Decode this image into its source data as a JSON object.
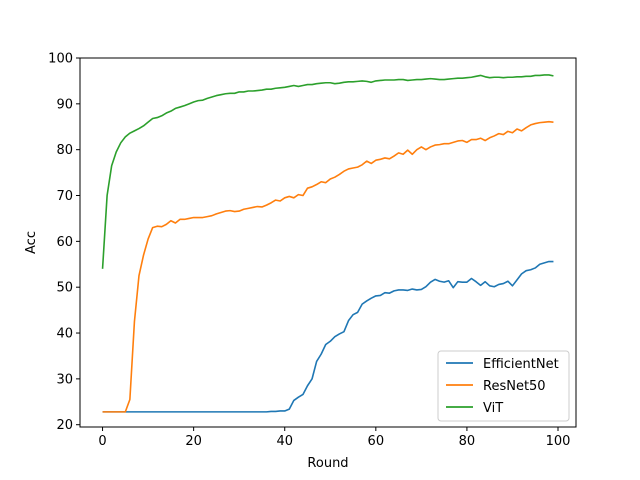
{
  "chart_data": {
    "type": "line",
    "title": "",
    "xlabel": "Round",
    "ylabel": "Acc",
    "xlim": [
      -4.95,
      103.95
    ],
    "ylim": [
      19.5,
      100
    ],
    "xticks": [
      0,
      20,
      40,
      60,
      80,
      100
    ],
    "yticks": [
      20,
      30,
      40,
      50,
      60,
      70,
      80,
      90,
      100
    ],
    "grid": false,
    "legend": "lower-right",
    "series": [
      {
        "name": "EfficientNet",
        "color": "#1f77b4",
        "values": [
          22.8,
          22.8,
          22.8,
          22.8,
          22.8,
          22.8,
          22.8,
          22.8,
          22.8,
          22.8,
          22.8,
          22.8,
          22.8,
          22.8,
          22.8,
          22.8,
          22.8,
          22.8,
          22.8,
          22.8,
          22.8,
          22.8,
          22.8,
          22.8,
          22.8,
          22.8,
          22.8,
          22.8,
          22.8,
          22.8,
          22.8,
          22.8,
          22.8,
          22.8,
          22.8,
          22.8,
          22.8,
          22.9,
          22.9,
          23.0,
          23.0,
          23.4,
          25.3,
          26.0,
          26.6,
          28.5,
          30.0,
          33.8,
          35.4,
          37.5,
          38.2,
          39.2,
          39.8,
          40.3,
          42.7,
          44.0,
          44.5,
          46.3,
          47.0,
          47.6,
          48.1,
          48.2,
          48.8,
          48.7,
          49.2,
          49.4,
          49.4,
          49.3,
          49.6,
          49.4,
          49.5,
          50.1,
          51.1,
          51.7,
          51.3,
          51.1,
          51.4,
          49.9,
          51.2,
          51.1,
          51.1,
          51.9,
          51.2,
          50.4,
          51.2,
          50.3,
          50.1,
          50.6,
          50.8,
          51.3,
          50.3,
          51.6,
          52.9,
          53.6,
          53.8,
          54.2,
          55.0,
          55.3,
          55.6,
          55.6
        ]
      },
      {
        "name": "ResNet50",
        "color": "#ff7f0e",
        "values": [
          22.8,
          22.8,
          22.8,
          22.8,
          22.8,
          22.8,
          25.5,
          42.5,
          52.5,
          57.0,
          60.5,
          63.0,
          63.3,
          63.2,
          63.7,
          64.5,
          64.0,
          64.8,
          64.8,
          65.0,
          65.2,
          65.2,
          65.2,
          65.4,
          65.6,
          66.0,
          66.3,
          66.6,
          66.7,
          66.5,
          66.6,
          67.0,
          67.2,
          67.4,
          67.6,
          67.5,
          67.9,
          68.4,
          69.0,
          68.8,
          69.5,
          69.8,
          69.5,
          70.2,
          70.0,
          71.6,
          71.9,
          72.4,
          73.0,
          72.8,
          73.6,
          74.0,
          74.6,
          75.3,
          75.8,
          76.0,
          76.2,
          76.7,
          77.5,
          77.0,
          77.7,
          77.9,
          78.2,
          78.0,
          78.6,
          79.3,
          79.0,
          79.9,
          79.0,
          80.0,
          80.6,
          80.0,
          80.6,
          81.0,
          81.1,
          81.3,
          81.3,
          81.6,
          81.9,
          82.0,
          81.6,
          82.2,
          82.2,
          82.5,
          82.0,
          82.6,
          83.0,
          83.5,
          83.3,
          84.0,
          83.7,
          84.5,
          84.1,
          84.8,
          85.4,
          85.7,
          85.9,
          86.0,
          86.1,
          86.0
        ]
      },
      {
        "name": "ViT",
        "color": "#2ca02c",
        "values": [
          54.0,
          70.0,
          76.5,
          79.5,
          81.5,
          82.8,
          83.6,
          84.1,
          84.6,
          85.2,
          86.0,
          86.8,
          87.0,
          87.4,
          88.0,
          88.4,
          89.0,
          89.3,
          89.6,
          90.0,
          90.4,
          90.7,
          90.8,
          91.2,
          91.5,
          91.8,
          92.0,
          92.2,
          92.3,
          92.3,
          92.6,
          92.6,
          92.8,
          92.8,
          92.9,
          93.0,
          93.2,
          93.2,
          93.4,
          93.5,
          93.6,
          93.8,
          94.0,
          93.8,
          94.0,
          94.2,
          94.2,
          94.4,
          94.5,
          94.6,
          94.6,
          94.4,
          94.5,
          94.7,
          94.8,
          94.8,
          94.9,
          95.0,
          94.9,
          94.7,
          95.0,
          95.1,
          95.2,
          95.2,
          95.2,
          95.3,
          95.3,
          95.1,
          95.2,
          95.3,
          95.3,
          95.4,
          95.5,
          95.4,
          95.3,
          95.3,
          95.4,
          95.5,
          95.6,
          95.6,
          95.7,
          95.8,
          96.0,
          96.2,
          95.9,
          95.7,
          95.8,
          95.8,
          95.7,
          95.8,
          95.8,
          95.9,
          95.9,
          96.0,
          96.0,
          96.2,
          96.2,
          96.3,
          96.3,
          96.1
        ]
      }
    ]
  }
}
